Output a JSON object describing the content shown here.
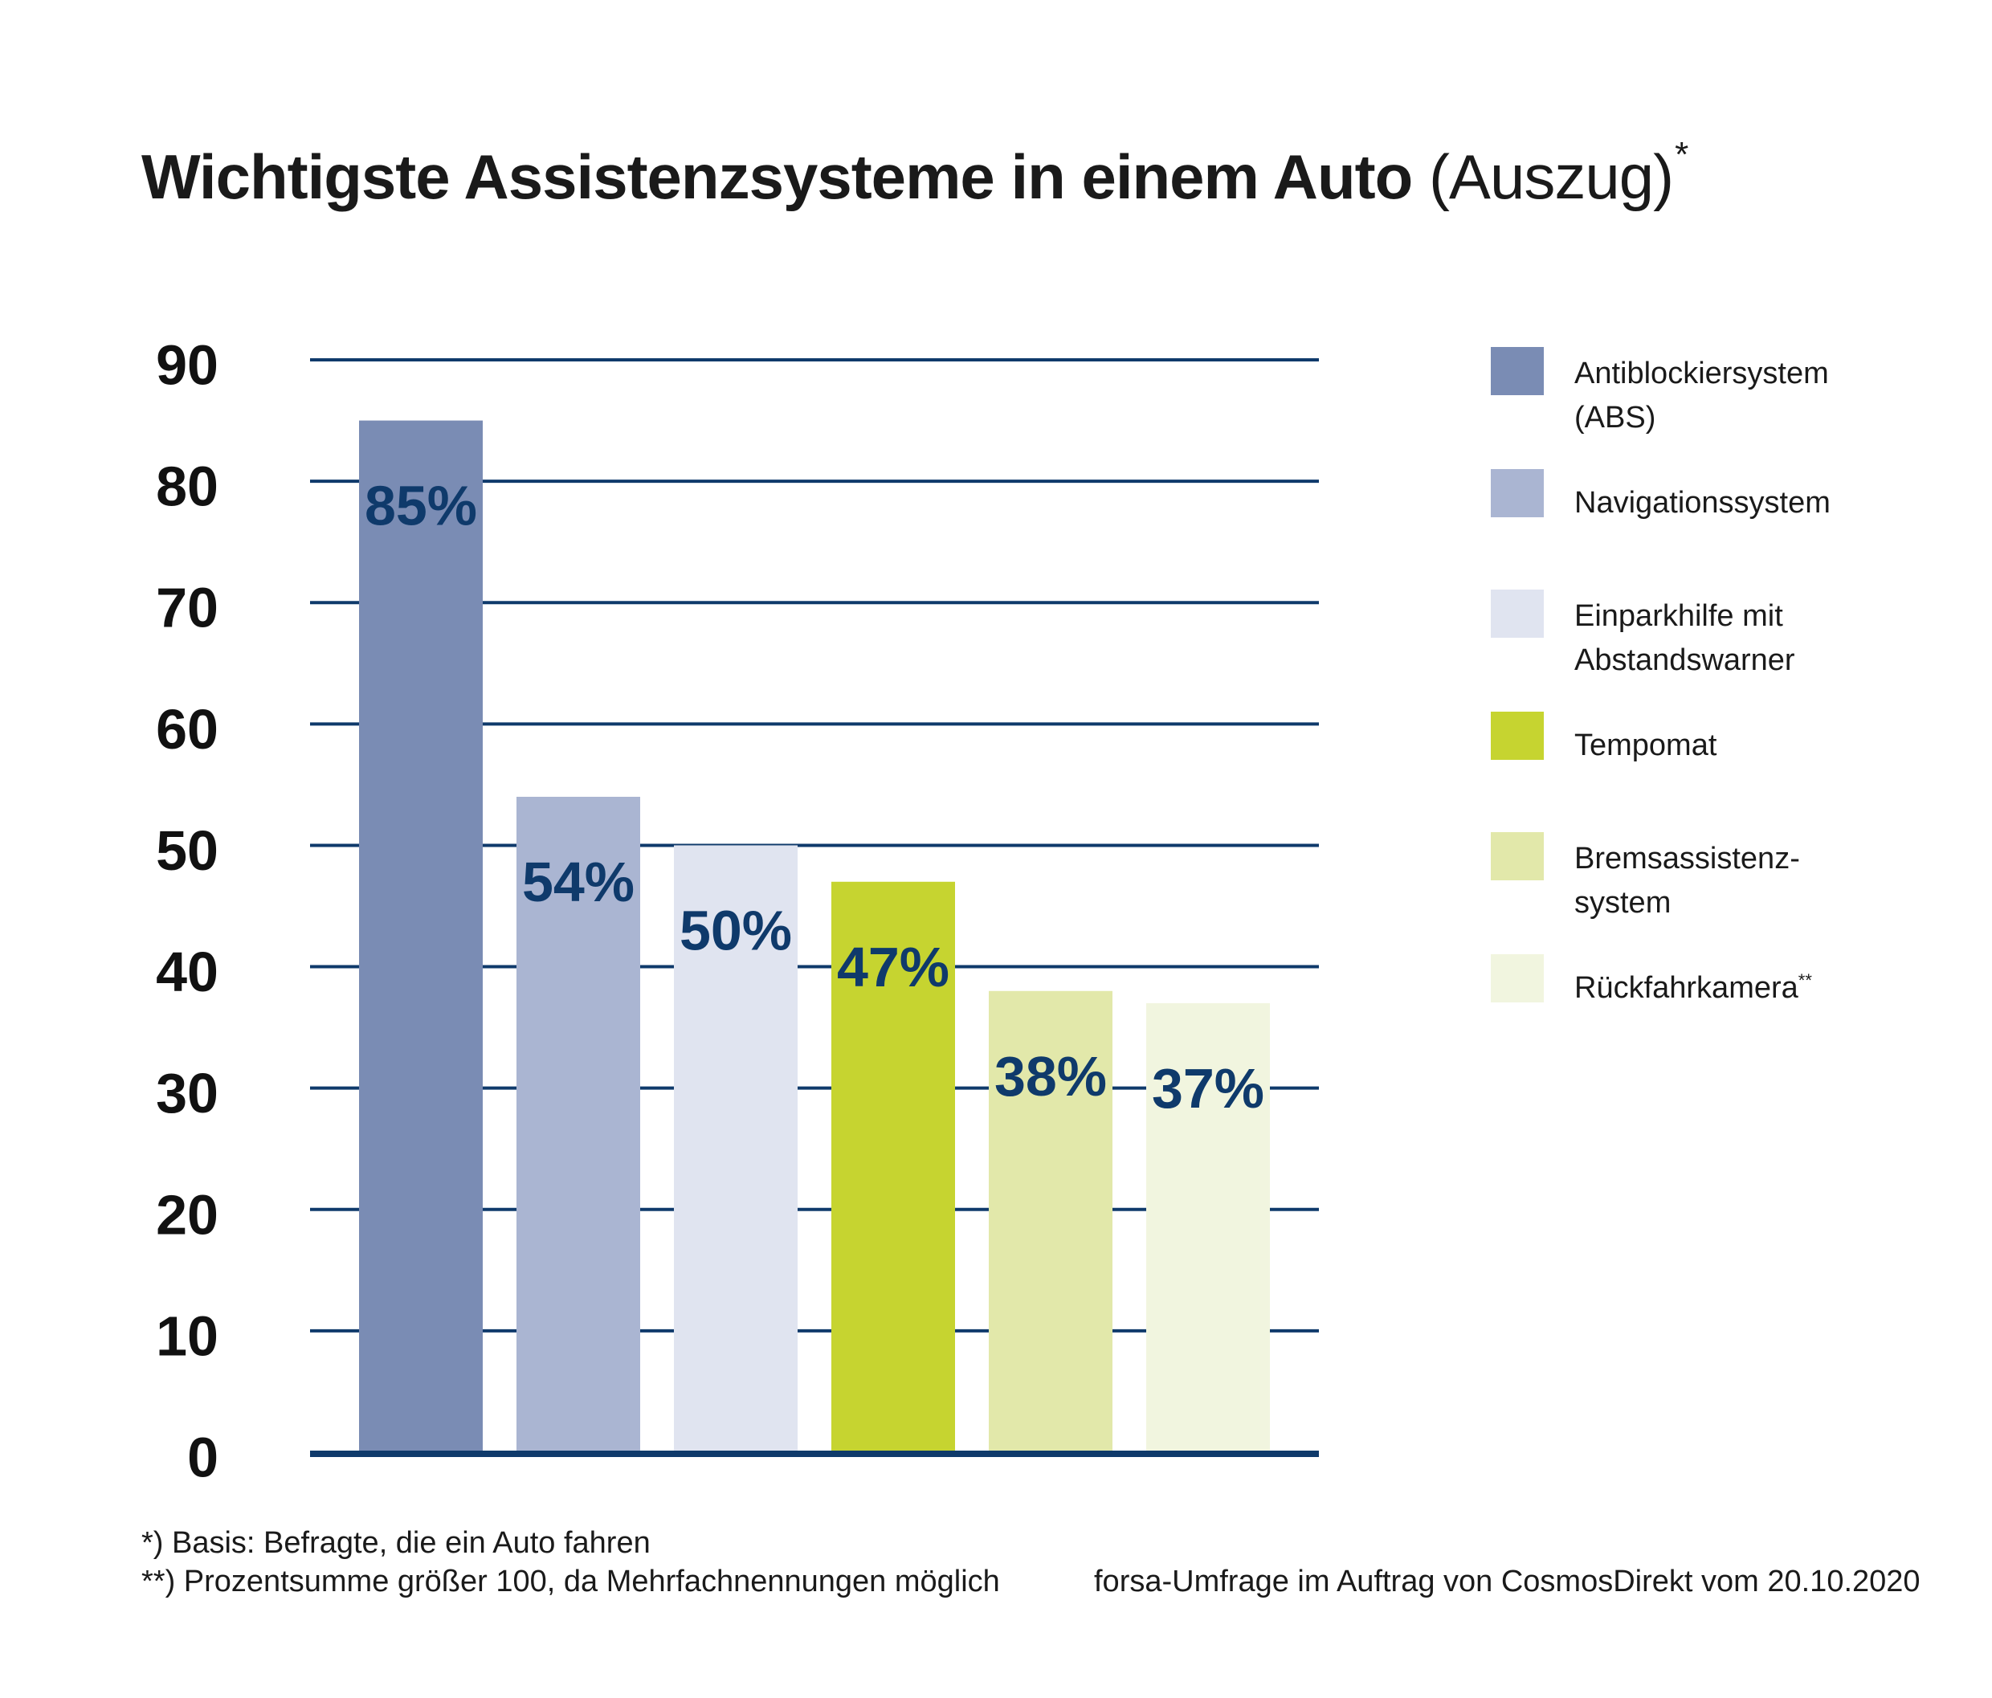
{
  "title": {
    "bold": "Wichtigste Assistenzsysteme in einem Auto",
    "light": "(Auszug)",
    "marker": "*"
  },
  "chart_data": {
    "type": "bar",
    "categories": [
      "Antiblockiersystem (ABS)",
      "Navigationssystem",
      "Einparkhilfe mit Abstandswarner",
      "Tempomat",
      "Bremsassistenz-system",
      "Rückfahrkamera"
    ],
    "values": [
      85,
      54,
      50,
      47,
      38,
      37
    ],
    "data_labels": [
      "85%",
      "54%",
      "50%",
      "47%",
      "38%",
      "37%"
    ],
    "colors": [
      "#7a8cb4",
      "#aab5d2",
      "#e0e4f0",
      "#c6d430",
      "#e2e8aa",
      "#f1f5df"
    ],
    "ylim": [
      0,
      90
    ],
    "yticks": [
      0,
      10,
      20,
      30,
      40,
      50,
      60,
      70,
      80,
      90
    ],
    "ytick_labels": [
      "0",
      "10",
      "20",
      "30",
      "40",
      "50",
      "60",
      "70",
      "80",
      "90"
    ],
    "grid": true,
    "grid_color": "#0f3a6b",
    "label_color": "#0f3a6b",
    "legend_position": "right"
  },
  "legend": [
    {
      "label": "Antiblockiersystem\n(ABS)",
      "color": "#7a8cb4",
      "marker": ""
    },
    {
      "label": "Navigationssystem",
      "color": "#aab5d2",
      "marker": ""
    },
    {
      "label": "Einparkhilfe mit\nAbstandswarner",
      "color": "#e0e4f0",
      "marker": ""
    },
    {
      "label": "Tempomat",
      "color": "#c6d430",
      "marker": ""
    },
    {
      "label": "Bremsassistenz-\nsystem",
      "color": "#e2e8aa",
      "marker": ""
    },
    {
      "label": "Rückfahrkamera",
      "color": "#f1f5df",
      "marker": "**"
    }
  ],
  "footnotes": {
    "note1": "*) Basis: Befragte, die ein Auto fahren",
    "note2": "**) Prozentsumme größer 100, da Mehrfachnennungen möglich",
    "source": "forsa-Umfrage im Auftrag von CosmosDirekt vom 20.10.2020"
  }
}
